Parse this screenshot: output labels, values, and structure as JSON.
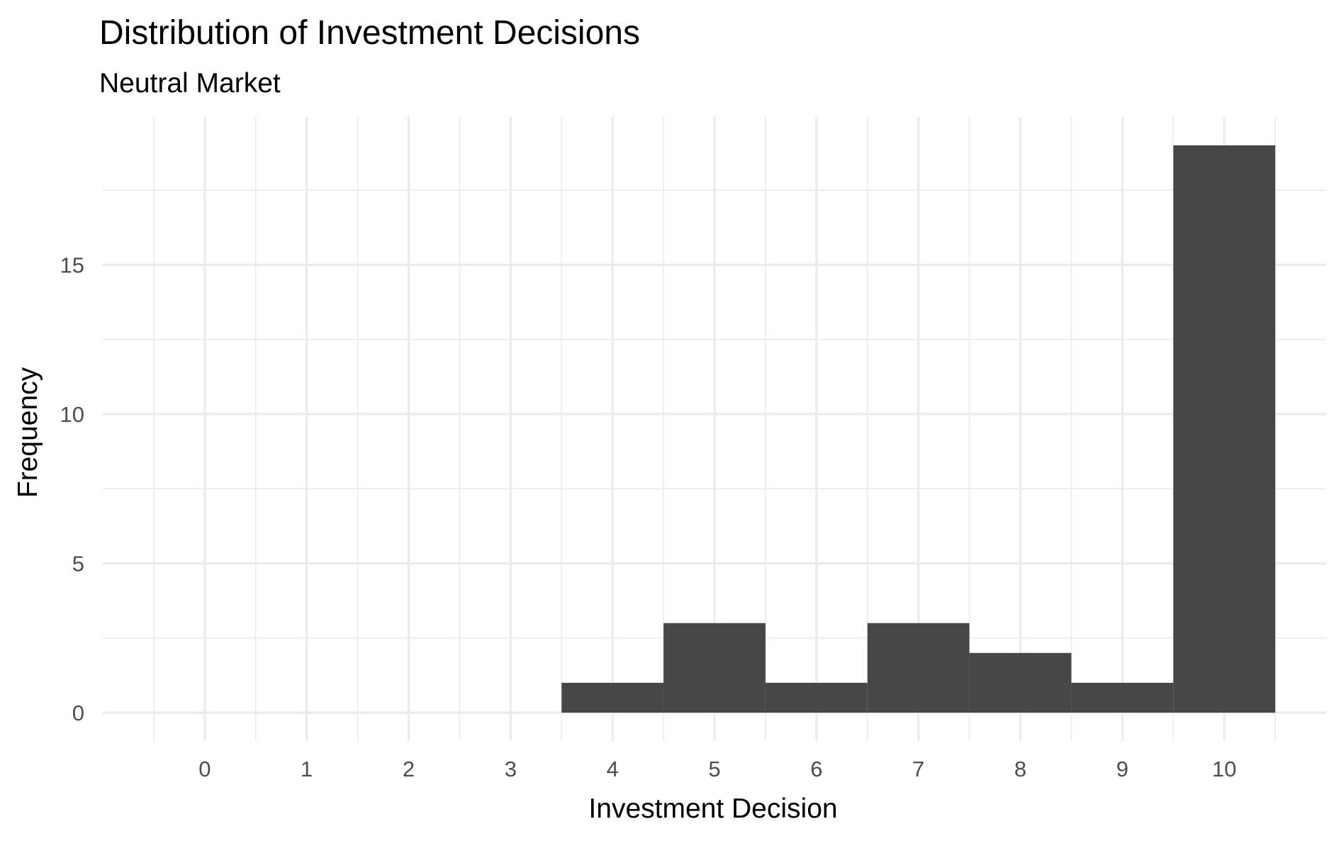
{
  "chart_data": {
    "type": "bar",
    "title": "Distribution of Investment Decisions",
    "subtitle": "Neutral Market",
    "xlabel": "Investment Decision",
    "ylabel": "Frequency",
    "x_ticks": [
      0,
      1,
      2,
      3,
      4,
      5,
      6,
      7,
      8,
      9,
      10
    ],
    "x_tick_labels": [
      "0",
      "1",
      "2",
      "3",
      "4",
      "5",
      "6",
      "7",
      "8",
      "9",
      "10"
    ],
    "y_ticks": [
      0,
      5,
      10,
      15
    ],
    "y_tick_labels": [
      "0",
      "5",
      "10",
      "15"
    ],
    "xlim": [
      -1,
      11
    ],
    "ylim": [
      -0.95,
      19.95
    ],
    "bin_width": 1,
    "bins": [
      {
        "center": 4,
        "count": 1
      },
      {
        "center": 5,
        "count": 3
      },
      {
        "center": 6,
        "count": 1
      },
      {
        "center": 7,
        "count": 3
      },
      {
        "center": 8,
        "count": 2
      },
      {
        "center": 9,
        "count": 1
      },
      {
        "center": 10,
        "count": 19
      }
    ],
    "bar_color": "#474747",
    "grid_color": "#ebebeb",
    "background_color": "#ffffff",
    "grid": true,
    "legend": "none"
  }
}
